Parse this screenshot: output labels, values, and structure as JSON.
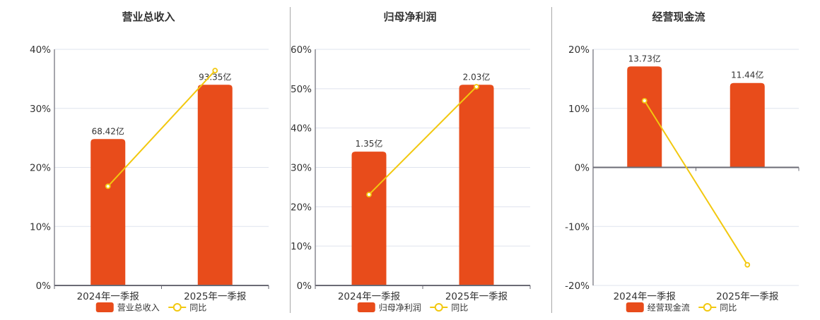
{
  "colors": {
    "bar": "#E84C1B",
    "line": "#F2C80F",
    "axis": "#6b6b75",
    "grid": "#dfe3ee",
    "text": "#333333",
    "separator": "#a8a8a8"
  },
  "legend": {
    "line_label": "同比"
  },
  "chart_data": [
    {
      "type": "bar+line",
      "title": "营业总收入",
      "categories": [
        "2024年一季报",
        "2025年一季报"
      ],
      "series": [
        {
          "name": "营业总收入",
          "type": "bar",
          "values_pct_scale": [
            24.8,
            34.0
          ],
          "labels": [
            "68.42亿",
            "93.35亿"
          ],
          "amounts_yi": [
            68.42,
            93.35
          ]
        },
        {
          "name": "同比",
          "type": "line",
          "values": [
            16.8,
            36.4
          ]
        }
      ],
      "ylim": [
        0,
        40
      ],
      "yticks": [
        "0%",
        "10%",
        "20%",
        "30%",
        "40%"
      ],
      "grid": true,
      "legend_position": "bottom"
    },
    {
      "type": "bar+line",
      "title": "归母净利润",
      "categories": [
        "2024年一季报",
        "2025年一季报"
      ],
      "series": [
        {
          "name": "归母净利润",
          "type": "bar",
          "values_pct_scale": [
            34.0,
            51.0
          ],
          "labels": [
            "1.35亿",
            "2.03亿"
          ],
          "amounts_yi": [
            1.35,
            2.03
          ]
        },
        {
          "name": "同比",
          "type": "line",
          "values": [
            23.1,
            50.5
          ]
        }
      ],
      "ylim": [
        0,
        60
      ],
      "yticks": [
        "0%",
        "10%",
        "20%",
        "30%",
        "40%",
        "50%",
        "60%"
      ],
      "grid": true,
      "legend_position": "bottom"
    },
    {
      "type": "bar+line",
      "title": "经营现金流",
      "categories": [
        "2024年一季报",
        "2025年一季报"
      ],
      "series": [
        {
          "name": "经营现金流",
          "type": "bar",
          "values_pct_scale": [
            17.1,
            14.3
          ],
          "labels": [
            "13.73亿",
            "11.44亿"
          ],
          "amounts_yi": [
            13.73,
            11.44
          ]
        },
        {
          "name": "同比",
          "type": "line",
          "values": [
            11.3,
            -16.5
          ]
        }
      ],
      "ylim": [
        -20,
        20
      ],
      "yticks": [
        "-20%",
        "-10%",
        "0%",
        "10%",
        "20%"
      ],
      "grid": true,
      "legend_position": "bottom"
    }
  ]
}
